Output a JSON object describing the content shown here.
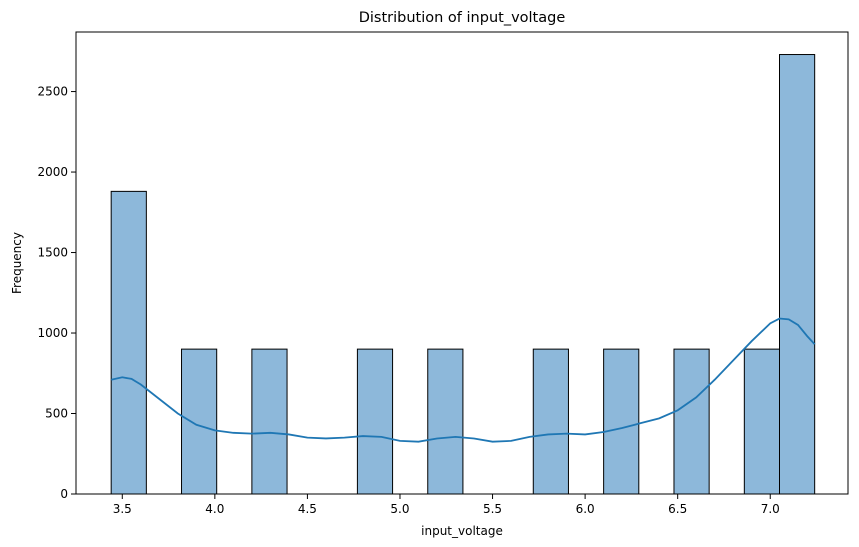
{
  "chart_data": {
    "type": "bar",
    "title": "Distribution of input_voltage",
    "xlabel": "input_voltage",
    "ylabel": "Frequency",
    "xlim": [
      3.25,
      7.42
    ],
    "ylim": [
      0,
      2870
    ],
    "x_ticks": [
      3.5,
      4.0,
      4.5,
      5.0,
      5.5,
      6.0,
      6.5,
      7.0
    ],
    "x_tick_labels": [
      "3.5",
      "4.0",
      "4.5",
      "5.0",
      "5.5",
      "6.0",
      "6.5",
      "7.0"
    ],
    "y_ticks": [
      0,
      500,
      1000,
      1500,
      2000,
      2500
    ],
    "y_tick_labels": [
      "0",
      "500",
      "1000",
      "1500",
      "2000",
      "2500"
    ],
    "bars": [
      {
        "x0": 3.44,
        "x1": 3.63,
        "value": 1880
      },
      {
        "x0": 3.82,
        "x1": 4.01,
        "value": 900
      },
      {
        "x0": 4.2,
        "x1": 4.39,
        "value": 900
      },
      {
        "x0": 4.77,
        "x1": 4.96,
        "value": 900
      },
      {
        "x0": 5.15,
        "x1": 5.34,
        "value": 900
      },
      {
        "x0": 5.72,
        "x1": 5.91,
        "value": 900
      },
      {
        "x0": 6.1,
        "x1": 6.29,
        "value": 900
      },
      {
        "x0": 6.48,
        "x1": 6.67,
        "value": 900
      },
      {
        "x0": 6.86,
        "x1": 7.05,
        "value": 900
      },
      {
        "x0": 7.05,
        "x1": 7.24,
        "value": 2730
      }
    ],
    "kde": {
      "x": [
        3.44,
        3.5,
        3.55,
        3.6,
        3.7,
        3.8,
        3.9,
        4.0,
        4.1,
        4.2,
        4.3,
        4.4,
        4.5,
        4.6,
        4.7,
        4.8,
        4.9,
        5.0,
        5.1,
        5.2,
        5.3,
        5.4,
        5.5,
        5.6,
        5.7,
        5.8,
        5.9,
        6.0,
        6.1,
        6.2,
        6.3,
        6.4,
        6.5,
        6.6,
        6.7,
        6.8,
        6.9,
        7.0,
        7.05,
        7.1,
        7.15,
        7.2,
        7.24
      ],
      "y": [
        710,
        725,
        715,
        680,
        590,
        500,
        430,
        395,
        380,
        375,
        380,
        370,
        350,
        345,
        350,
        360,
        355,
        330,
        325,
        345,
        355,
        345,
        325,
        330,
        355,
        370,
        375,
        370,
        385,
        410,
        440,
        470,
        520,
        600,
        710,
        830,
        950,
        1060,
        1090,
        1085,
        1050,
        980,
        930
      ]
    },
    "grid": false,
    "legend": "none"
  }
}
